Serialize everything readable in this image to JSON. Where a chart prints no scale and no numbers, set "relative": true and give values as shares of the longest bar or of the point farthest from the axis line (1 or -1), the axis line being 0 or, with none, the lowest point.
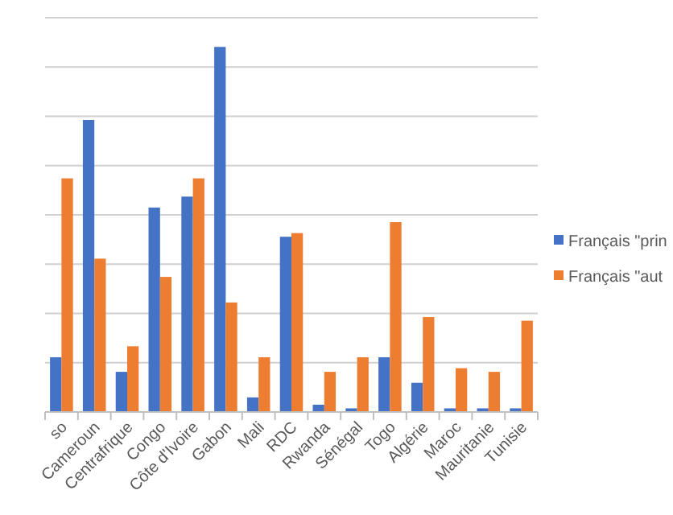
{
  "chart_data": {
    "type": "bar",
    "relative": true,
    "grid": true,
    "legend": "right",
    "categories": [
      "so",
      "Cameroun",
      "Centrafrique",
      "Congo",
      "Côte d'Ivoire",
      "Gabon",
      "Mali",
      "RDC",
      "Rwanda",
      "Sénégal",
      "Togo",
      "Algérie",
      "Maroc",
      "Mauritanie",
      "Tunisie"
    ],
    "series": [
      {
        "name": "Français \"prin",
        "color": "#4472c4",
        "values": [
          0.15,
          0.8,
          0.11,
          0.56,
          0.59,
          1,
          0.04,
          0.48,
          0.02,
          0.01,
          0.15,
          0.08,
          0.01,
          0.01,
          0.01
        ]
      },
      {
        "name": "Français \"aut",
        "color": "#ed7d31",
        "values": [
          0.64,
          0.42,
          0.18,
          0.37,
          0.64,
          0.3,
          0.15,
          0.49,
          0.11,
          0.15,
          0.52,
          0.26,
          0.12,
          0.11,
          0.25
        ]
      }
    ]
  }
}
